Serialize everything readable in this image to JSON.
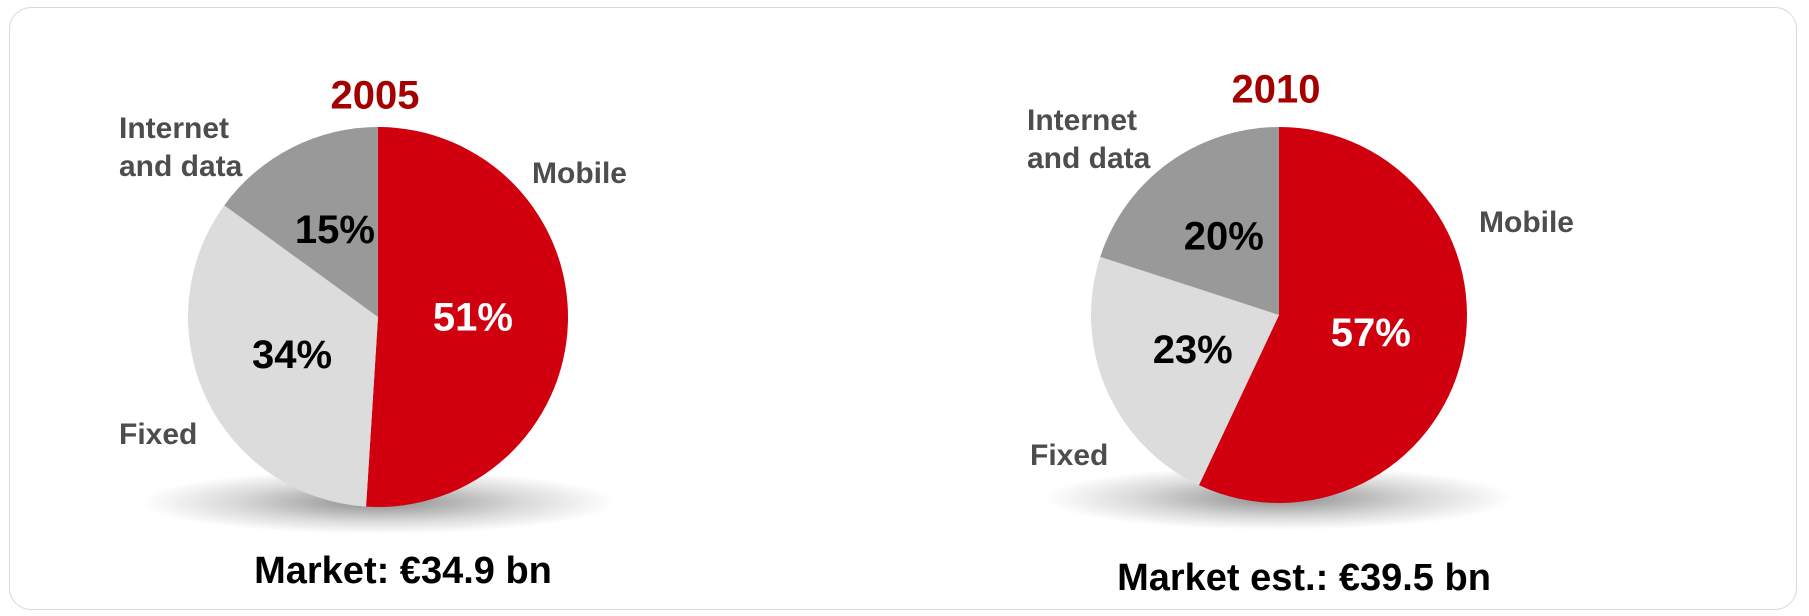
{
  "chart_data": [
    {
      "type": "pie",
      "title": "2005",
      "categories": [
        "Mobile",
        "Fixed",
        "Internet and data"
      ],
      "values": [
        51,
        34,
        15
      ],
      "value_labels": [
        "51%",
        "34%",
        "15%"
      ],
      "colors": [
        "#d0000f",
        "#dcdcdc",
        "#999999"
      ],
      "footer": "Market: €34.9 bn"
    },
    {
      "type": "pie",
      "title": "2010",
      "categories": [
        "Mobile",
        "Fixed",
        "Internet and data"
      ],
      "values": [
        57,
        23,
        20
      ],
      "value_labels": [
        "57%",
        "23%",
        "20%"
      ],
      "colors": [
        "#d0000f",
        "#dcdcdc",
        "#999999"
      ],
      "footer": "Market est.: €39.5 bn"
    }
  ]
}
